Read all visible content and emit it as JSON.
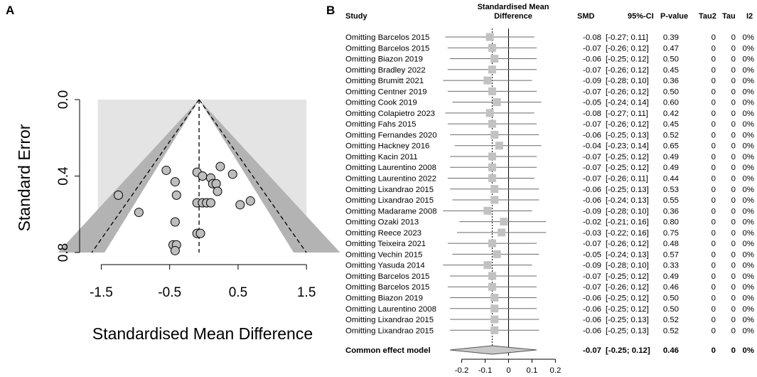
{
  "panel_a_label": "A",
  "panel_b_label": "B",
  "colors": {
    "funnel_bg": "#e4e4e4",
    "funnel_outer": "#b3b3b3",
    "funnel_inner": "#8a8a8a",
    "point_fill": "#bebebe",
    "square_fill": "#c2c2c2",
    "diamond_fill": "#c8c8c8",
    "ci_line": "#6a6a6a"
  },
  "chart_data": [
    {
      "type": "scatter",
      "subtype": "funnel",
      "xlabel": "Standardised Mean Difference",
      "ylabel": "Standard Error",
      "xlim": [
        -1.65,
        1.55
      ],
      "ylim": [
        0.0,
        0.8
      ],
      "y_reversed": true,
      "x_ticks": [
        "-1.5",
        "-0.5",
        "0.5",
        "1.5"
      ],
      "x_tick_values": [
        -1.5,
        -0.5,
        0.5,
        1.5
      ],
      "y_ticks": [
        "0.0",
        "0.4",
        "0.8"
      ],
      "y_tick_values": [
        0.0,
        0.4,
        0.8
      ],
      "pooled_estimate": -0.07,
      "contours": [
        0.9,
        0.95,
        0.99
      ],
      "points": [
        {
          "x": -1.25,
          "y": 0.5
        },
        {
          "x": -0.95,
          "y": 0.59
        },
        {
          "x": -0.55,
          "y": 0.37
        },
        {
          "x": -0.42,
          "y": 0.43
        },
        {
          "x": -0.4,
          "y": 0.5
        },
        {
          "x": -0.42,
          "y": 0.64
        },
        {
          "x": -0.45,
          "y": 0.76
        },
        {
          "x": -0.4,
          "y": 0.76
        },
        {
          "x": -0.42,
          "y": 0.79
        },
        {
          "x": -0.1,
          "y": 0.38
        },
        {
          "x": -0.02,
          "y": 0.4
        },
        {
          "x": -0.1,
          "y": 0.54
        },
        {
          "x": -0.02,
          "y": 0.54
        },
        {
          "x": 0.04,
          "y": 0.54
        },
        {
          "x": 0.1,
          "y": 0.54
        },
        {
          "x": 0.1,
          "y": 0.41
        },
        {
          "x": 0.13,
          "y": 0.44
        },
        {
          "x": 0.18,
          "y": 0.44
        },
        {
          "x": 0.2,
          "y": 0.48
        },
        {
          "x": 0.24,
          "y": 0.35
        },
        {
          "x": 0.42,
          "y": 0.39
        },
        {
          "x": 0.53,
          "y": 0.55
        },
        {
          "x": 0.68,
          "y": 0.53
        },
        {
          "x": -0.1,
          "y": 0.7
        },
        {
          "x": -0.05,
          "y": 0.7
        }
      ]
    },
    {
      "type": "forest",
      "title": "Standardised Mean Difference",
      "columns": [
        "Study",
        "SMD",
        "95%-CI",
        "P-value",
        "Tau2",
        "Tau",
        "I2"
      ],
      "xlim": [
        -0.22,
        0.22
      ],
      "x_ticks": [
        "-0.2",
        "-0.1",
        "0",
        "0.1",
        "0.2"
      ],
      "x_tick_values": [
        -0.2,
        -0.1,
        0,
        0.1,
        0.2
      ],
      "reference_line": 0,
      "common_effect_line": -0.07,
      "rows": [
        {
          "study": "Omitting Barcelos 2015",
          "smd": -0.08,
          "lo": -0.27,
          "hi": 0.11,
          "smd_text": "-0.08",
          "ci_text": "[-0.27; 0.11]",
          "p": "0.39",
          "tau2": "0",
          "tau": "0",
          "i2": "0%"
        },
        {
          "study": "Omitting Barcelos 2015",
          "smd": -0.07,
          "lo": -0.26,
          "hi": 0.12,
          "smd_text": "-0.07",
          "ci_text": "[-0.26; 0.12]",
          "p": "0.47",
          "tau2": "0",
          "tau": "0",
          "i2": "0%"
        },
        {
          "study": "Omitting Biazon 2019",
          "smd": -0.06,
          "lo": -0.25,
          "hi": 0.12,
          "smd_text": "-0.06",
          "ci_text": "[-0.25; 0.12]",
          "p": "0.50",
          "tau2": "0",
          "tau": "0",
          "i2": "0%"
        },
        {
          "study": "Omitting Bradley 2022",
          "smd": -0.07,
          "lo": -0.26,
          "hi": 0.12,
          "smd_text": "-0.07",
          "ci_text": "[-0.26; 0.12]",
          "p": "0.45",
          "tau2": "0",
          "tau": "0",
          "i2": "0%"
        },
        {
          "study": "Omitting Brumitt 2021",
          "smd": -0.09,
          "lo": -0.28,
          "hi": 0.1,
          "smd_text": "-0.09",
          "ci_text": "[-0.28; 0.10]",
          "p": "0.36",
          "tau2": "0",
          "tau": "0",
          "i2": "0%"
        },
        {
          "study": "Omitting Centner 2019",
          "smd": -0.07,
          "lo": -0.26,
          "hi": 0.12,
          "smd_text": "-0.07",
          "ci_text": "[-0.26; 0.12]",
          "p": "0.50",
          "tau2": "0",
          "tau": "0",
          "i2": "0%"
        },
        {
          "study": "Omitting Cook 2019",
          "smd": -0.05,
          "lo": -0.24,
          "hi": 0.14,
          "smd_text": "-0.05",
          "ci_text": "[-0.24; 0.14]",
          "p": "0.60",
          "tau2": "0",
          "tau": "0",
          "i2": "0%"
        },
        {
          "study": "Omitting Colapietro 2023",
          "smd": -0.08,
          "lo": -0.27,
          "hi": 0.11,
          "smd_text": "-0.08",
          "ci_text": "[-0.27; 0.11]",
          "p": "0.42",
          "tau2": "0",
          "tau": "0",
          "i2": "0%"
        },
        {
          "study": "Omitting Fahs 2015",
          "smd": -0.07,
          "lo": -0.26,
          "hi": 0.12,
          "smd_text": "-0.07",
          "ci_text": "[-0.26; 0.12]",
          "p": "0.45",
          "tau2": "0",
          "tau": "0",
          "i2": "0%"
        },
        {
          "study": "Omitting Fernandes 2020",
          "smd": -0.06,
          "lo": -0.25,
          "hi": 0.13,
          "smd_text": "-0.06",
          "ci_text": "[-0.25; 0.13]",
          "p": "0.52",
          "tau2": "0",
          "tau": "0",
          "i2": "0%"
        },
        {
          "study": "Omitting Hackney 2016",
          "smd": -0.04,
          "lo": -0.23,
          "hi": 0.14,
          "smd_text": "-0.04",
          "ci_text": "[-0.23; 0.14]",
          "p": "0.65",
          "tau2": "0",
          "tau": "0",
          "i2": "0%"
        },
        {
          "study": "Omitting Kacin 2011",
          "smd": -0.07,
          "lo": -0.25,
          "hi": 0.12,
          "smd_text": "-0.07",
          "ci_text": "[-0.25; 0.12]",
          "p": "0.49",
          "tau2": "0",
          "tau": "0",
          "i2": "0%"
        },
        {
          "study": "Omitting Laurentino 2008",
          "smd": -0.07,
          "lo": -0.25,
          "hi": 0.12,
          "smd_text": "-0.07",
          "ci_text": "[-0.25; 0.12]",
          "p": "0.49",
          "tau2": "0",
          "tau": "0",
          "i2": "0%"
        },
        {
          "study": "Omitting Laurentino 2022",
          "smd": -0.07,
          "lo": -0.26,
          "hi": 0.11,
          "smd_text": "-0.07",
          "ci_text": "[-0.26; 0.11]",
          "p": "0.44",
          "tau2": "0",
          "tau": "0",
          "i2": "0%"
        },
        {
          "study": "Omitting Lixandrao 2015",
          "smd": -0.06,
          "lo": -0.25,
          "hi": 0.13,
          "smd_text": "-0.06",
          "ci_text": "[-0.25; 0.13]",
          "p": "0.53",
          "tau2": "0",
          "tau": "0",
          "i2": "0%"
        },
        {
          "study": "Omitting Lixandrao 2015",
          "smd": -0.06,
          "lo": -0.24,
          "hi": 0.13,
          "smd_text": "-0.06",
          "ci_text": "[-0.24; 0.13]",
          "p": "0.55",
          "tau2": "0",
          "tau": "0",
          "i2": "0%"
        },
        {
          "study": "Omitting Madarame 2008",
          "smd": -0.09,
          "lo": -0.28,
          "hi": 0.1,
          "smd_text": "-0.09",
          "ci_text": "[-0.28; 0.10]",
          "p": "0.36",
          "tau2": "0",
          "tau": "0",
          "i2": "0%"
        },
        {
          "study": "Omitting Ozaki 2013",
          "smd": -0.02,
          "lo": -0.21,
          "hi": 0.16,
          "smd_text": "-0.02",
          "ci_text": "[-0.21; 0.16]",
          "p": "0.80",
          "tau2": "0",
          "tau": "0",
          "i2": "0%"
        },
        {
          "study": "Omitting Reece 2023",
          "smd": -0.03,
          "lo": -0.22,
          "hi": 0.16,
          "smd_text": "-0.03",
          "ci_text": "[-0.22; 0.16]",
          "p": "0.75",
          "tau2": "0",
          "tau": "0",
          "i2": "0%"
        },
        {
          "study": "Omitting Teixeira 2021",
          "smd": -0.07,
          "lo": -0.26,
          "hi": 0.12,
          "smd_text": "-0.07",
          "ci_text": "[-0.26; 0.12]",
          "p": "0.48",
          "tau2": "0",
          "tau": "0",
          "i2": "0%"
        },
        {
          "study": "Omitting Vechin 2015",
          "smd": -0.05,
          "lo": -0.24,
          "hi": 0.13,
          "smd_text": "-0.05",
          "ci_text": "[-0.24; 0.13]",
          "p": "0.57",
          "tau2": "0",
          "tau": "0",
          "i2": "0%"
        },
        {
          "study": "Omitting Yasuda 2014",
          "smd": -0.09,
          "lo": -0.28,
          "hi": 0.1,
          "smd_text": "-0.09",
          "ci_text": "[-0.28; 0.10]",
          "p": "0.33",
          "tau2": "0",
          "tau": "0",
          "i2": "0%"
        },
        {
          "study": "Omitting Barcelos 2015",
          "smd": -0.07,
          "lo": -0.25,
          "hi": 0.12,
          "smd_text": "-0.07",
          "ci_text": "[-0.25; 0.12]",
          "p": "0.49",
          "tau2": "0",
          "tau": "0",
          "i2": "0%"
        },
        {
          "study": "Omitting Barcelos 2015",
          "smd": -0.07,
          "lo": -0.26,
          "hi": 0.12,
          "smd_text": "-0.07",
          "ci_text": "[-0.26; 0.12]",
          "p": "0.46",
          "tau2": "0",
          "tau": "0",
          "i2": "0%"
        },
        {
          "study": "Omitting Biazon 2019",
          "smd": -0.06,
          "lo": -0.25,
          "hi": 0.12,
          "smd_text": "-0.06",
          "ci_text": "[-0.25; 0.12]",
          "p": "0.50",
          "tau2": "0",
          "tau": "0",
          "i2": "0%"
        },
        {
          "study": "Omitting Laurentino 2008",
          "smd": -0.06,
          "lo": -0.25,
          "hi": 0.12,
          "smd_text": "-0.06",
          "ci_text": "[-0.25; 0.12]",
          "p": "0.50",
          "tau2": "0",
          "tau": "0",
          "i2": "0%"
        },
        {
          "study": "Omitting Lixandrao 2015",
          "smd": -0.06,
          "lo": -0.25,
          "hi": 0.13,
          "smd_text": "-0.06",
          "ci_text": "[-0.25; 0.13]",
          "p": "0.52",
          "tau2": "0",
          "tau": "0",
          "i2": "0%"
        },
        {
          "study": "Omitting Lixandrao 2015",
          "smd": -0.06,
          "lo": -0.25,
          "hi": 0.13,
          "smd_text": "-0.06",
          "ci_text": "[-0.25; 0.13]",
          "p": "0.52",
          "tau2": "0",
          "tau": "0",
          "i2": "0%"
        }
      ],
      "summary": {
        "label": "Common effect model",
        "smd": -0.07,
        "lo": -0.25,
        "hi": 0.12,
        "smd_text": "-0.07",
        "ci_text": "[-0.25; 0.12]",
        "p": "0.46",
        "tau2": "0",
        "tau": "0",
        "i2": "0%"
      }
    }
  ]
}
